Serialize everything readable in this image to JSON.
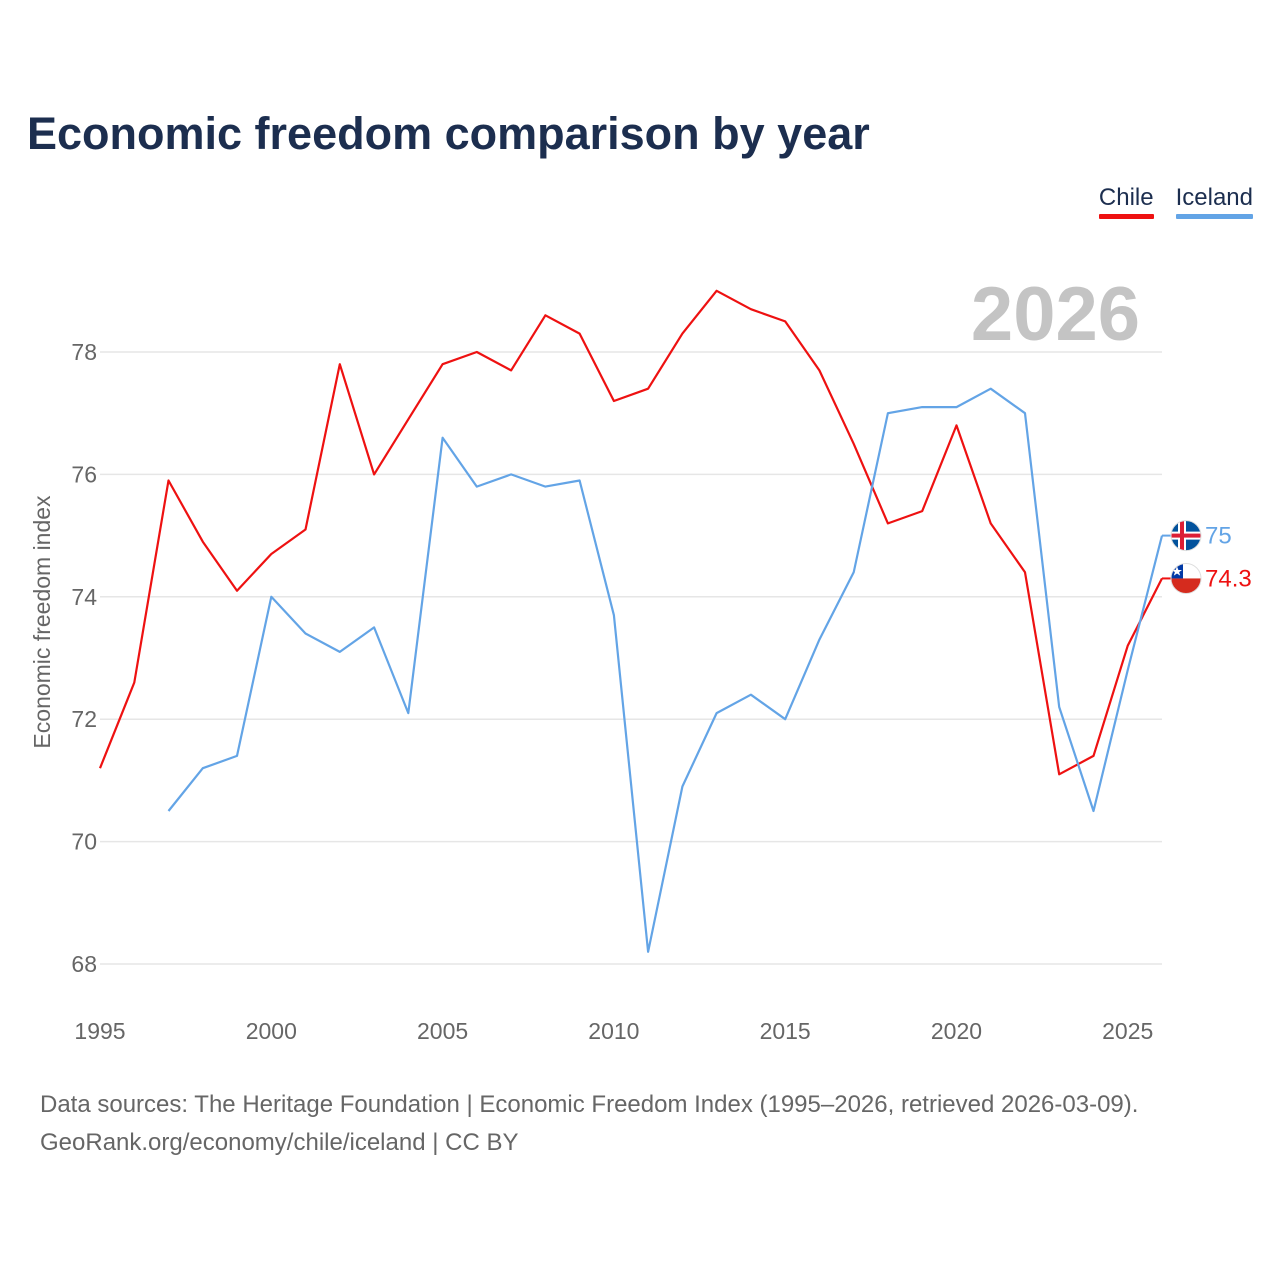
{
  "colors": {
    "title": "#1c2e4f",
    "chile": "#ee1111",
    "iceland": "#63a4e6",
    "grid": "#e6e6e6",
    "axis_text": "#666666",
    "watermark": "#c4c4c4"
  },
  "chart_data": {
    "type": "line",
    "title": "Economic freedom comparison by year",
    "xlabel": "",
    "ylabel": "Economic freedom index",
    "xlim": [
      1995,
      2026
    ],
    "ylim": [
      67.5,
      79.5
    ],
    "x_ticks": [
      1995,
      2000,
      2005,
      2010,
      2015,
      2020,
      2025
    ],
    "y_ticks": [
      68,
      70,
      72,
      74,
      76,
      78
    ],
    "grid": true,
    "legend_position": "top-right",
    "year_label": "2026",
    "series": [
      {
        "name": "Chile",
        "color": "#ee1111",
        "flag": "chile-flag-icon",
        "end_label": "74.3",
        "x": [
          1995,
          1996,
          1997,
          1998,
          1999,
          2000,
          2001,
          2002,
          2003,
          2004,
          2005,
          2006,
          2007,
          2008,
          2009,
          2010,
          2011,
          2012,
          2013,
          2014,
          2015,
          2016,
          2017,
          2018,
          2019,
          2020,
          2021,
          2022,
          2023,
          2024,
          2025,
          2026
        ],
        "values": [
          71.2,
          72.6,
          75.9,
          74.9,
          74.1,
          74.7,
          75.1,
          77.8,
          76.0,
          76.9,
          77.8,
          78.0,
          77.7,
          78.6,
          78.3,
          77.2,
          77.4,
          78.3,
          79.0,
          78.7,
          78.5,
          77.7,
          76.5,
          75.2,
          75.4,
          76.8,
          75.2,
          74.4,
          71.1,
          71.4,
          73.2,
          74.3
        ]
      },
      {
        "name": "Iceland",
        "color": "#63a4e6",
        "flag": "iceland-flag-icon",
        "end_label": "75",
        "x": [
          1997,
          1998,
          1999,
          2000,
          2001,
          2002,
          2003,
          2004,
          2005,
          2006,
          2007,
          2008,
          2009,
          2010,
          2011,
          2012,
          2013,
          2014,
          2015,
          2016,
          2017,
          2018,
          2019,
          2020,
          2021,
          2022,
          2023,
          2024,
          2025,
          2026
        ],
        "values": [
          70.5,
          71.2,
          71.4,
          74.0,
          73.4,
          73.1,
          73.5,
          72.1,
          76.6,
          75.8,
          76.0,
          75.8,
          75.9,
          73.7,
          68.2,
          70.9,
          72.1,
          72.4,
          72.0,
          73.3,
          74.4,
          77.0,
          77.1,
          77.1,
          77.4,
          77.0,
          72.2,
          70.5,
          72.8,
          75.0
        ]
      }
    ]
  },
  "legend": [
    {
      "label": "Chile",
      "color": "#ee1111"
    },
    {
      "label": "Iceland",
      "color": "#63a4e6"
    }
  ],
  "footer": {
    "line1": "Data sources: The Heritage Foundation | Economic Freedom Index (1995–2026, retrieved 2026-03-09).",
    "line2": "GeoRank.org/economy/chile/iceland | CC BY"
  }
}
